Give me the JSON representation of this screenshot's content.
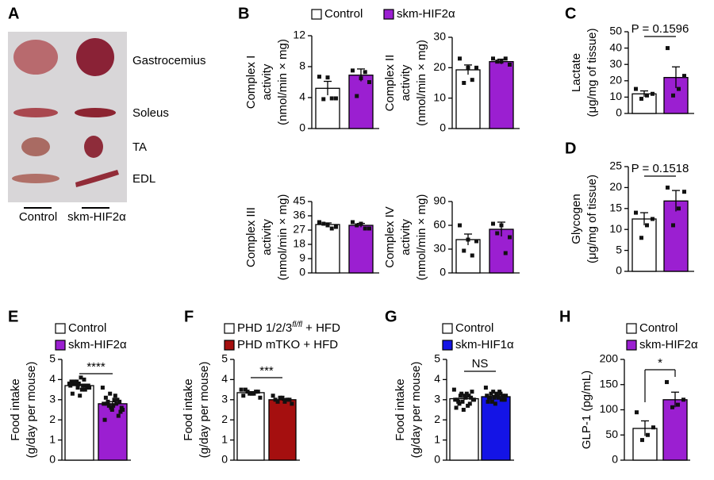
{
  "panel_a": {
    "letter": "A",
    "muscles": [
      "Gastrocemius",
      "Soleus",
      "TA",
      "EDL"
    ],
    "groups": [
      "Control",
      "skm-HIF2α"
    ]
  },
  "chart_data": [
    {
      "type": "bar",
      "panel": "B",
      "ylabel": [
        "Complex I",
        "activity",
        "(nmol/min × mg)"
      ],
      "ylim": [
        0,
        12
      ],
      "yticks": [
        0,
        4,
        8,
        12
      ],
      "series": [
        {
          "name": "Control",
          "color": "#ffffff",
          "values": [
            5.2
          ],
          "errors": [
            0.9
          ],
          "points": [
            6.7,
            6.6,
            3.9,
            3.8,
            3.9
          ]
        },
        {
          "name": "skm-HIF2α",
          "color": "#9b1fd1",
          "values": [
            6.9
          ],
          "errors": [
            0.8
          ],
          "points": [
            7.5,
            6.5,
            6.0,
            4.2,
            7.3
          ]
        }
      ]
    },
    {
      "type": "bar",
      "ylabel": [
        "Complex II",
        "activity",
        "(nmol/min × mg)"
      ],
      "ylim": [
        0,
        30
      ],
      "yticks": [
        0,
        10,
        20,
        30
      ],
      "series": [
        {
          "color": "#ffffff",
          "values": [
            19.3
          ],
          "errors": [
            1.6
          ],
          "points": [
            23,
            20,
            20,
            15,
            16
          ]
        },
        {
          "color": "#9b1fd1",
          "values": [
            22
          ],
          "errors": [
            0.8
          ],
          "points": [
            23,
            22,
            21,
            22,
            23
          ]
        }
      ]
    },
    {
      "type": "bar",
      "ylabel": [
        "Complex III",
        "activity",
        "(nmol/min × mg)"
      ],
      "ylim": [
        0,
        45
      ],
      "yticks": [
        0,
        9,
        18,
        27,
        36,
        45
      ],
      "series": [
        {
          "color": "#ffffff",
          "values": [
            30.5
          ],
          "errors": [
            1
          ],
          "points": [
            32,
            30,
            29,
            31,
            28
          ]
        },
        {
          "color": "#9b1fd1",
          "values": [
            30
          ],
          "errors": [
            1.2
          ],
          "points": [
            32,
            31,
            28,
            30,
            28
          ]
        }
      ]
    },
    {
      "type": "bar",
      "ylabel": [
        "Complex IV",
        "activity",
        "(nmol/min × mg)"
      ],
      "ylim": [
        0,
        90
      ],
      "yticks": [
        0,
        30,
        60,
        90
      ],
      "series": [
        {
          "color": "#ffffff",
          "values": [
            42
          ],
          "errors": [
            7
          ],
          "points": [
            60,
            42,
            40,
            28,
            22
          ]
        },
        {
          "color": "#9b1fd1",
          "values": [
            55
          ],
          "errors": [
            9
          ],
          "points": [
            62,
            60,
            45,
            50,
            25
          ]
        }
      ]
    },
    {
      "type": "bar",
      "panel": "C",
      "ylabel": [
        "Lactate",
        "(μg/mg of tissue)"
      ],
      "ylim": [
        0,
        50
      ],
      "yticks": [
        0,
        10,
        20,
        30,
        40,
        50
      ],
      "annotation": "P = 0.1596",
      "series": [
        {
          "color": "#ffffff",
          "values": [
            12
          ],
          "errors": [
            1.8
          ],
          "points": [
            15,
            12,
            11,
            9
          ]
        },
        {
          "color": "#9b1fd1",
          "values": [
            22
          ],
          "errors": [
            6.5
          ],
          "points": [
            40,
            23,
            15,
            11
          ]
        }
      ]
    },
    {
      "type": "bar",
      "panel": "D",
      "ylabel": [
        "Glycogen",
        "(μg/mg of tissue)"
      ],
      "ylim": [
        0,
        25
      ],
      "yticks": [
        0,
        5,
        10,
        15,
        20,
        25
      ],
      "annotation": "P = 0.1518",
      "series": [
        {
          "color": "#ffffff",
          "values": [
            12.5
          ],
          "errors": [
            1.5
          ],
          "points": [
            14,
            12.5,
            11,
            8
          ]
        },
        {
          "color": "#9b1fd1",
          "values": [
            16.8
          ],
          "errors": [
            2.5
          ],
          "points": [
            20,
            19,
            15,
            11
          ]
        }
      ]
    },
    {
      "type": "bar",
      "panel": "E",
      "ylabel": [
        "Food intake",
        "(g/day per mouse)"
      ],
      "ylim": [
        0,
        5
      ],
      "yticks": [
        0,
        1,
        2,
        3,
        4,
        5
      ],
      "annotation": "****",
      "series": [
        {
          "name": "Control",
          "color": "#ffffff",
          "values": [
            3.7
          ],
          "errors": [
            0.06
          ],
          "points": [
            3.8,
            3.9,
            4.0,
            3.7,
            3.6,
            3.5,
            3.9,
            3.8,
            3.7,
            3.3,
            3.2,
            3.6,
            3.8,
            4.1,
            3.7,
            3.9,
            3.5,
            3.6,
            3.8,
            3.7
          ]
        },
        {
          "name": "skm-HIF2α",
          "color": "#9b1fd1",
          "values": [
            2.8
          ],
          "errors": [
            0.1
          ],
          "points": [
            3.6,
            3.3,
            3.0,
            2.8,
            2.6,
            2.2,
            2.0,
            2.5,
            2.9,
            3.1,
            2.7,
            2.4,
            2.8,
            3.0,
            2.6,
            2.9,
            3.2,
            2.5,
            2.7,
            2.8
          ]
        }
      ]
    },
    {
      "type": "bar",
      "panel": "F",
      "ylabel": [
        "Food intake",
        "(g/day per mouse)"
      ],
      "ylim": [
        0,
        5
      ],
      "yticks": [
        0,
        1,
        2,
        3,
        4,
        5
      ],
      "annotation": "***",
      "series": [
        {
          "name": [
            "PHD 1/2/3",
            "fl/fl",
            " +  HFD"
          ],
          "color": "#ffffff",
          "values": [
            3.35
          ],
          "errors": [
            0.05
          ],
          "points": [
            3.5,
            3.4,
            3.3,
            3.2,
            3.4,
            3.3,
            3.5,
            3.1,
            3.3,
            3.4
          ]
        },
        {
          "name": "PHD mTKO + HFD",
          "color": "#a50f0f",
          "values": [
            3.0
          ],
          "errors": [
            0.05
          ],
          "points": [
            3.2,
            3.0,
            2.9,
            3.1,
            3.0,
            2.8,
            3.0,
            3.1,
            2.9
          ]
        }
      ]
    },
    {
      "type": "bar",
      "panel": "G",
      "ylabel": [
        "Food intake",
        "(g/day per mouse)"
      ],
      "ylim": [
        0,
        5
      ],
      "yticks": [
        0,
        1,
        2,
        3,
        4,
        5
      ],
      "annotation": "NS",
      "series": [
        {
          "name": "Control",
          "color": "#ffffff",
          "values": [
            3.05
          ],
          "errors": [
            0.07
          ],
          "points": [
            3.5,
            3.3,
            3.2,
            3.0,
            2.9,
            2.8,
            2.6,
            2.5,
            3.1,
            3.0,
            3.2,
            3.4,
            2.9,
            3.1,
            3.0,
            2.8,
            3.3,
            3.0,
            3.2,
            2.7
          ]
        },
        {
          "name": "skm-HIF1α",
          "color": "#1414e6",
          "values": [
            3.15
          ],
          "errors": [
            0.06
          ],
          "points": [
            3.6,
            3.4,
            3.3,
            3.2,
            3.1,
            3.0,
            2.9,
            2.8,
            3.2,
            3.1,
            3.3,
            3.0,
            3.1,
            3.2,
            3.0,
            3.3,
            3.1,
            3.2,
            2.9,
            3.4
          ]
        }
      ]
    },
    {
      "type": "bar",
      "panel": "H",
      "ylabel": [
        "GLP-1 (pg/mL)"
      ],
      "ylim": [
        0,
        200
      ],
      "yticks": [
        0,
        50,
        100,
        150,
        200
      ],
      "annotation": "*",
      "series": [
        {
          "name": "Control",
          "color": "#ffffff",
          "values": [
            63
          ],
          "errors": [
            15
          ],
          "points": [
            95,
            65,
            50,
            40
          ]
        },
        {
          "name": "skm-HIF2α",
          "color": "#9b1fd1",
          "values": [
            120
          ],
          "errors": [
            15
          ],
          "points": [
            155,
            120,
            110,
            105
          ]
        }
      ]
    }
  ]
}
